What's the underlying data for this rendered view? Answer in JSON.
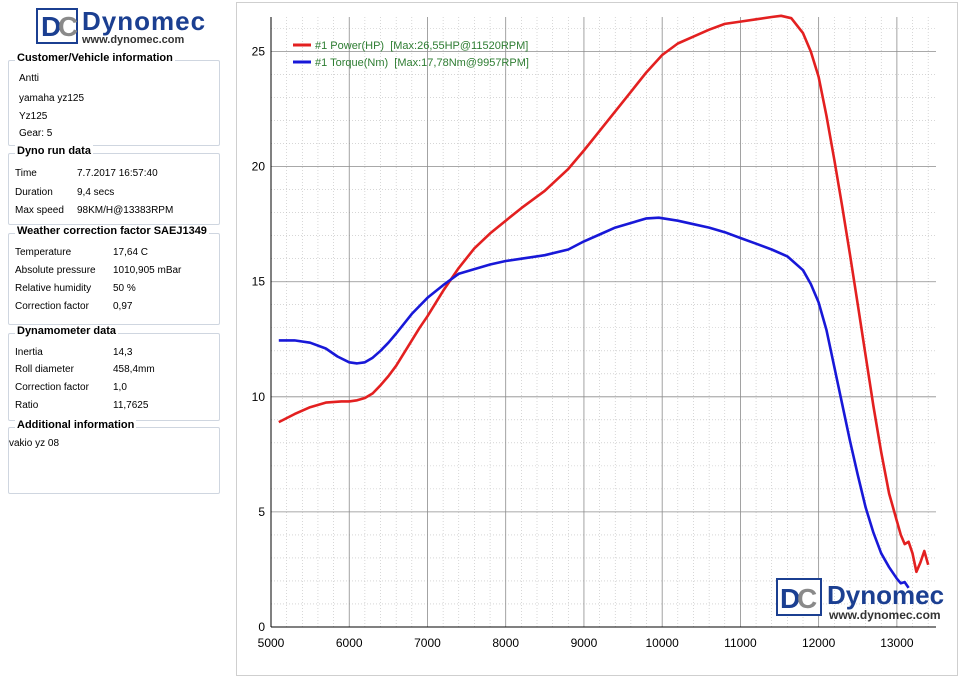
{
  "header": {
    "logo_name": "Dynomec",
    "logo_url": "www.dynomec.com",
    "logo_letters": "DC"
  },
  "customer": {
    "title": "Customer/Vehicle information",
    "lines": [
      "Antti",
      "yamaha yz125",
      "Yz125",
      "Gear: 5"
    ]
  },
  "run": {
    "title": "Dyno run data",
    "rows": [
      {
        "k": "Time",
        "v": "7.7.2017 16:57:40"
      },
      {
        "k": "Duration",
        "v": "9,4 secs"
      },
      {
        "k": "Max speed",
        "v": "98KM/H@13383RPM"
      }
    ]
  },
  "weather": {
    "title": "Weather correction factor SAEJ1349",
    "rows": [
      {
        "k": "Temperature",
        "v": "17,64 C"
      },
      {
        "k": "Absolute pressure",
        "v": "1010,905 mBar"
      },
      {
        "k": "Relative humidity",
        "v": "50 %"
      },
      {
        "k": "Correction factor",
        "v": "0,97"
      }
    ]
  },
  "dyno": {
    "title": "Dynamometer data",
    "rows": [
      {
        "k": "Inertia",
        "v": "14,3"
      },
      {
        "k": "Roll diameter",
        "v": "458,4mm"
      },
      {
        "k": "Correction factor",
        "v": "1,0"
      },
      {
        "k": "Ratio",
        "v": "11,7625"
      }
    ]
  },
  "additional": {
    "title": "Additional information",
    "text": "vakio yz 08"
  },
  "colors": {
    "power": "#e32020",
    "torque": "#1818d8",
    "legend_text": "#2e7d32",
    "brand": "#1b3f91"
  },
  "chart_data": {
    "type": "line",
    "xlim": [
      5000,
      13500
    ],
    "ylim": [
      0,
      26.5
    ],
    "xticks": [
      5000,
      6000,
      7000,
      8000,
      9000,
      10000,
      11000,
      12000,
      13000
    ],
    "yticks": [
      0,
      5,
      10,
      15,
      20,
      25
    ],
    "grid": true,
    "legend_position": "top-left",
    "watermark": {
      "name": "Dynomec",
      "url": "www.dynomec.com"
    },
    "series": [
      {
        "name": "#1 Power(HP)",
        "legend": "#1 Power(HP)  [Max:26,55HP@11520RPM]",
        "color": "#e32020",
        "x": [
          5100,
          5300,
          5500,
          5700,
          5900,
          6000,
          6100,
          6200,
          6300,
          6400,
          6500,
          6600,
          6700,
          6800,
          6900,
          7000,
          7100,
          7200,
          7400,
          7600,
          7800,
          8000,
          8200,
          8500,
          8800,
          9000,
          9200,
          9400,
          9600,
          9800,
          10000,
          10200,
          10400,
          10600,
          10800,
          11000,
          11200,
          11400,
          11520,
          11650,
          11800,
          11900,
          12000,
          12100,
          12200,
          12300,
          12400,
          12500,
          12600,
          12700,
          12800,
          12900,
          13000,
          13050,
          13100,
          13150,
          13200,
          13250,
          13300,
          13350,
          13400
        ],
        "y": [
          8.9,
          9.25,
          9.55,
          9.75,
          9.8,
          9.8,
          9.85,
          9.95,
          10.15,
          10.5,
          10.9,
          11.35,
          11.9,
          12.45,
          13.0,
          13.5,
          14.05,
          14.6,
          15.6,
          16.45,
          17.1,
          17.65,
          18.2,
          18.95,
          19.9,
          20.7,
          21.55,
          22.4,
          23.25,
          24.1,
          24.85,
          25.35,
          25.65,
          25.95,
          26.2,
          26.3,
          26.4,
          26.5,
          26.55,
          26.45,
          25.8,
          25.0,
          23.9,
          22.2,
          20.3,
          18.3,
          16.2,
          14.0,
          11.8,
          9.6,
          7.6,
          5.8,
          4.6,
          4.0,
          3.6,
          3.7,
          3.2,
          2.4,
          2.8,
          3.3,
          2.7
        ]
      },
      {
        "name": "#1 Torque(Nm)",
        "legend": "#1 Torque(Nm)  [Max:17,78Nm@9957RPM]",
        "color": "#1818d8",
        "x": [
          5100,
          5300,
          5500,
          5700,
          5850,
          6000,
          6100,
          6200,
          6300,
          6400,
          6500,
          6600,
          6800,
          7000,
          7200,
          7400,
          7600,
          7800,
          8000,
          8200,
          8500,
          8800,
          9000,
          9200,
          9400,
          9600,
          9800,
          9957,
          10200,
          10400,
          10600,
          10800,
          11000,
          11200,
          11400,
          11600,
          11800,
          11900,
          12000,
          12100,
          12200,
          12300,
          12400,
          12500,
          12600,
          12700,
          12800,
          12900,
          13000,
          13050,
          13100,
          13150
        ],
        "y": [
          12.45,
          12.45,
          12.35,
          12.1,
          11.75,
          11.5,
          11.45,
          11.5,
          11.7,
          12.0,
          12.35,
          12.75,
          13.6,
          14.3,
          14.85,
          15.35,
          15.55,
          15.75,
          15.9,
          16.0,
          16.15,
          16.4,
          16.75,
          17.05,
          17.35,
          17.55,
          17.75,
          17.78,
          17.65,
          17.5,
          17.35,
          17.15,
          16.9,
          16.65,
          16.4,
          16.1,
          15.5,
          14.9,
          14.1,
          12.9,
          11.3,
          9.7,
          8.1,
          6.6,
          5.2,
          4.1,
          3.2,
          2.6,
          2.1,
          1.9,
          1.95,
          1.7
        ]
      }
    ]
  }
}
